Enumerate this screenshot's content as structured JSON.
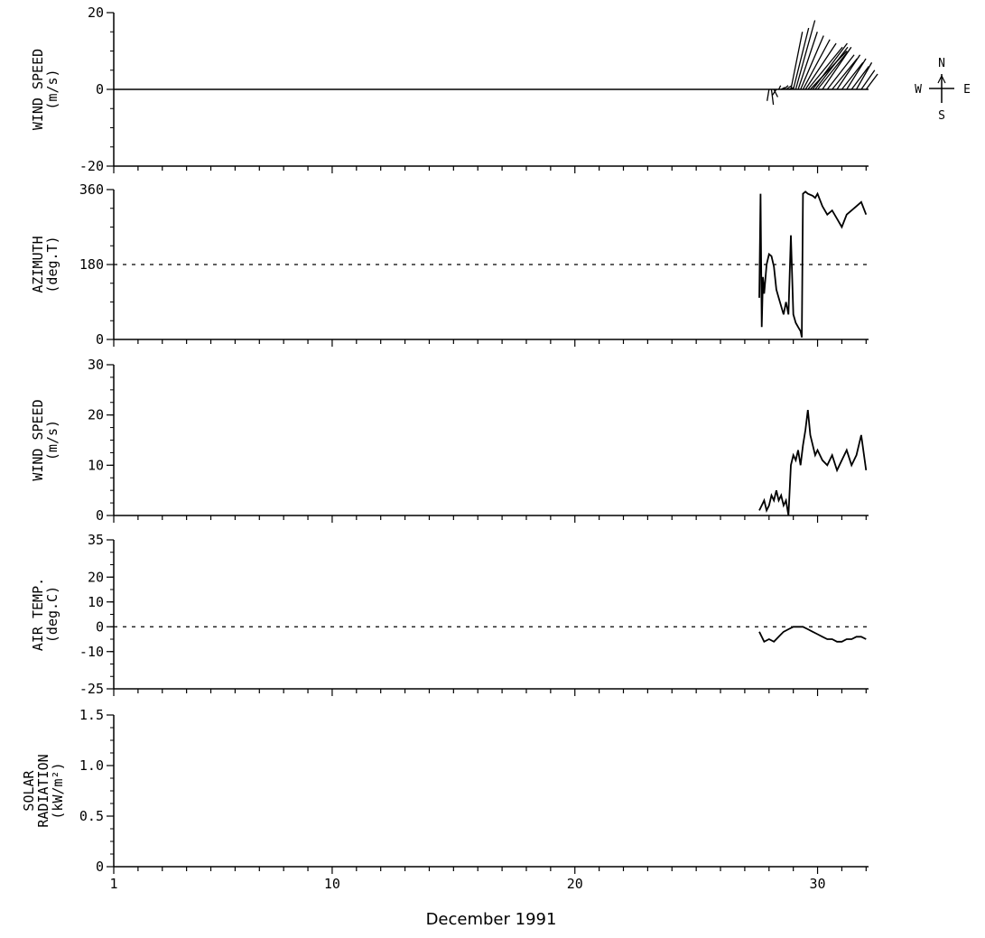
{
  "figure": {
    "xlabel": "December 1991",
    "x_ticks": [
      {
        "value": 1,
        "label": "1"
      },
      {
        "value": 10,
        "label": "10"
      },
      {
        "value": 20,
        "label": "20"
      },
      {
        "value": 30,
        "label": "30"
      }
    ],
    "compass": {
      "n": "N",
      "s": "S",
      "e": "E",
      "w": "W"
    }
  },
  "chart_data": [
    {
      "type": "line",
      "subtype": "wind-vector-stick",
      "ylabel_line1": "WIND SPEED",
      "ylabel_line2": "(m/s)",
      "xlim": [
        1,
        32.1
      ],
      "ylim": [
        -20,
        20
      ],
      "y_ticks": [
        {
          "value": 20,
          "label": "20"
        },
        {
          "value": 0,
          "label": "0"
        },
        {
          "value": -20,
          "label": "-20"
        }
      ],
      "grid": false,
      "x": [
        28.0,
        28.1,
        28.2,
        28.3,
        28.4,
        28.5,
        28.6,
        28.7,
        28.8,
        28.9,
        29.0,
        29.1,
        29.2,
        29.3,
        29.4,
        29.5,
        29.6,
        29.7,
        29.8,
        29.9,
        30.0,
        30.2,
        30.4,
        30.6,
        30.8,
        31.0,
        31.2,
        31.4,
        31.6,
        31.8,
        32.0
      ],
      "u": [
        -0.5,
        0.5,
        1.0,
        -1.0,
        0.5,
        1.0,
        1.2,
        1.5,
        1.5,
        3.0,
        4.0,
        5.0,
        5.0,
        6.0,
        7.0,
        8.0,
        9.0,
        9.5,
        9.0,
        8.5,
        8.0,
        7.5,
        7.0,
        6.5,
        6.0,
        5.5,
        5.0,
        4.5,
        4.0,
        3.5,
        3.0
      ],
      "v": [
        -3.0,
        -4.0,
        -2.0,
        -1.5,
        1.0,
        0.5,
        1.0,
        1.0,
        0.5,
        15.0,
        16.0,
        18.0,
        15.0,
        14.0,
        13.0,
        12.0,
        11.0,
        10.0,
        12.0,
        11.0,
        10.0,
        11.0,
        9.0,
        8.0,
        9.0,
        7.0,
        8.0,
        6.0,
        7.0,
        5.0,
        4.0
      ]
    },
    {
      "type": "line",
      "ylabel_line1": "AZIMUTH",
      "ylabel_line2": "(deg.T)",
      "xlim": [
        1,
        32.1
      ],
      "ylim": [
        0,
        360
      ],
      "y_ticks": [
        {
          "value": 360,
          "label": "360"
        },
        {
          "value": 180,
          "label": "180"
        },
        {
          "value": 0,
          "label": "0"
        }
      ],
      "reference_line": 180,
      "grid": false,
      "x": [
        27.6,
        27.65,
        27.7,
        27.75,
        27.8,
        27.9,
        28.0,
        28.1,
        28.2,
        28.3,
        28.4,
        28.5,
        28.6,
        28.7,
        28.8,
        28.9,
        29.0,
        29.1,
        29.2,
        29.3,
        29.35,
        29.4,
        29.5,
        29.6,
        29.8,
        29.9,
        30.0,
        30.2,
        30.4,
        30.6,
        30.8,
        31.0,
        31.2,
        31.4,
        31.6,
        31.8,
        32.0
      ],
      "y": [
        100,
        350,
        30,
        150,
        110,
        180,
        205,
        200,
        175,
        120,
        100,
        80,
        60,
        90,
        60,
        250,
        60,
        40,
        30,
        20,
        5,
        350,
        355,
        350,
        345,
        340,
        350,
        320,
        300,
        310,
        290,
        270,
        300,
        310,
        320,
        330,
        300
      ]
    },
    {
      "type": "line",
      "ylabel_line1": "WIND SPEED",
      "ylabel_line2": "(m/s)",
      "xlim": [
        1,
        32.1
      ],
      "ylim": [
        0,
        30
      ],
      "y_ticks": [
        {
          "value": 30,
          "label": "30"
        },
        {
          "value": 20,
          "label": "20"
        },
        {
          "value": 10,
          "label": "10"
        },
        {
          "value": 0,
          "label": "0"
        }
      ],
      "grid": false,
      "x": [
        27.6,
        27.7,
        27.8,
        27.9,
        28.0,
        28.1,
        28.2,
        28.3,
        28.4,
        28.5,
        28.6,
        28.7,
        28.8,
        28.9,
        29.0,
        29.1,
        29.2,
        29.3,
        29.4,
        29.5,
        29.6,
        29.7,
        29.8,
        29.9,
        30.0,
        30.2,
        30.4,
        30.6,
        30.8,
        31.0,
        31.2,
        31.4,
        31.6,
        31.8,
        32.0
      ],
      "y": [
        1,
        2,
        3,
        1,
        2,
        4,
        3,
        5,
        3,
        4,
        2,
        3,
        0,
        10,
        12,
        11,
        13,
        10,
        14,
        17,
        21,
        16,
        14,
        12,
        13,
        11,
        10,
        12,
        9,
        11,
        13,
        10,
        12,
        16,
        9
      ]
    },
    {
      "type": "line",
      "ylabel_line1": "AIR TEMP.",
      "ylabel_line2": "(deg.C)",
      "xlim": [
        1,
        32.1
      ],
      "ylim": [
        -25,
        35
      ],
      "y_ticks": [
        {
          "value": 35,
          "label": "35"
        },
        {
          "value": 20,
          "label": "20"
        },
        {
          "value": 10,
          "label": "10"
        },
        {
          "value": 0,
          "label": "0"
        },
        {
          "value": -10,
          "label": "-10"
        },
        {
          "value": -25,
          "label": "-25"
        }
      ],
      "reference_line": 0,
      "grid": false,
      "x": [
        27.6,
        27.8,
        28.0,
        28.2,
        28.4,
        28.6,
        28.8,
        29.0,
        29.2,
        29.4,
        29.6,
        29.8,
        30.0,
        30.2,
        30.4,
        30.6,
        30.8,
        31.0,
        31.2,
        31.4,
        31.6,
        31.8,
        32.0
      ],
      "y": [
        -2,
        -6,
        -5,
        -6,
        -4,
        -2,
        -1,
        0,
        0,
        0,
        -1,
        -2,
        -3,
        -4,
        -5,
        -5,
        -6,
        -6,
        -5,
        -5,
        -4,
        -4,
        -5
      ]
    },
    {
      "type": "line",
      "ylabel_line1": "SOLAR",
      "ylabel_line2": "RADIATION",
      "ylabel_line3": "(kW/m²)",
      "xlim": [
        1,
        32.1
      ],
      "ylim": [
        0,
        1.5
      ],
      "y_ticks": [
        {
          "value": 1.5,
          "label": "1.5"
        },
        {
          "value": 1.0,
          "label": "1.0"
        },
        {
          "value": 0.5,
          "label": "0.5"
        },
        {
          "value": 0,
          "label": "0"
        }
      ],
      "grid": false,
      "x": [],
      "y": []
    }
  ]
}
